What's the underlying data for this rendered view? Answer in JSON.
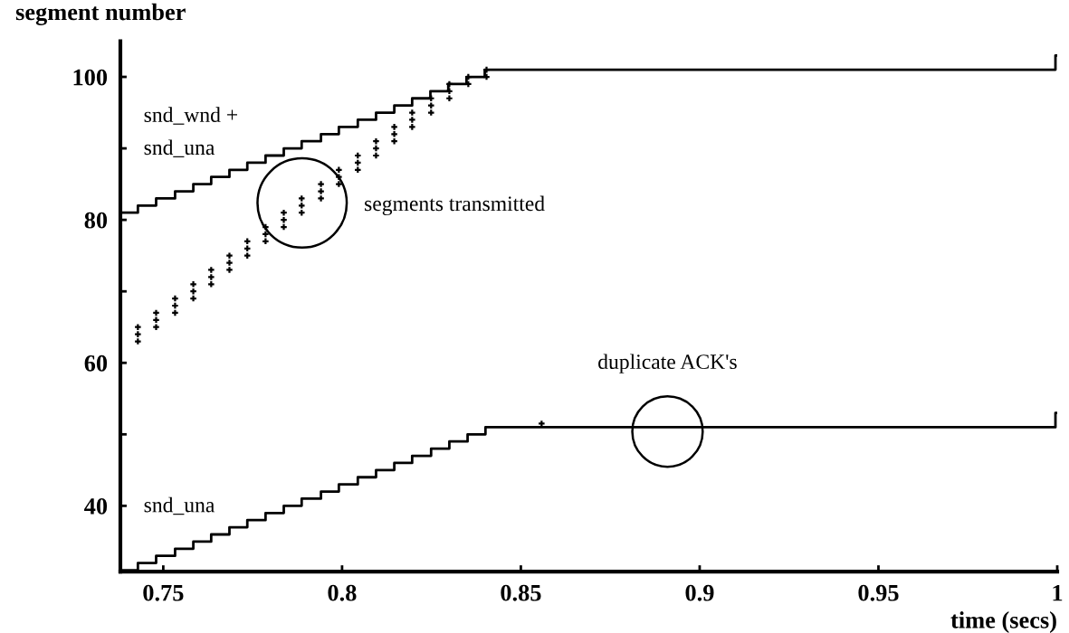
{
  "chart_data": {
    "type": "step",
    "xlabel": "time (secs)",
    "ylabel": "segment number",
    "xlim": [
      0.738,
      1.0
    ],
    "ylim": [
      30.8,
      105
    ],
    "xticks": [
      0.75,
      0.8,
      0.85,
      0.9,
      0.95,
      {
        "value": 1.0,
        "label": "1"
      }
    ],
    "yticks": [
      40,
      {
        "value": 50,
        "label": null
      },
      60,
      {
        "value": 70,
        "label": null
      },
      80,
      {
        "value": 90,
        "label": null
      },
      100
    ],
    "grid": false,
    "legend": false,
    "series": [
      {
        "name": "snd_wnd +\nsnd_una",
        "color": "#000000",
        "x": [
          0.738,
          0.7429,
          0.748,
          0.7533,
          0.7584,
          0.7634,
          0.7685,
          0.7735,
          0.7786,
          0.7837,
          0.7887,
          0.7941,
          0.7991,
          0.8044,
          0.8095,
          0.8146,
          0.8196,
          0.8247,
          0.8297,
          0.8348,
          0.8399,
          0.9995,
          1.0
        ],
        "values": [
          81,
          82,
          83,
          84,
          85,
          86,
          87,
          88,
          89,
          90,
          91,
          92,
          93,
          94,
          95,
          96,
          97,
          98,
          99,
          100,
          101,
          103,
          103
        ]
      },
      {
        "name": "snd_una",
        "color": "#000000",
        "x": [
          0.738,
          0.7429,
          0.748,
          0.7533,
          0.7584,
          0.7634,
          0.7685,
          0.7735,
          0.7786,
          0.7837,
          0.7887,
          0.7941,
          0.7991,
          0.8044,
          0.8095,
          0.8146,
          0.8196,
          0.8249,
          0.83,
          0.8351,
          0.8401,
          0.9995,
          1.0
        ],
        "values": [
          31,
          32,
          33,
          34,
          35,
          36,
          37,
          38,
          39,
          40,
          41,
          42,
          43,
          44,
          45,
          46,
          47,
          48,
          49,
          50,
          51,
          53,
          53
        ]
      },
      {
        "type": "scatter",
        "color": "#000000",
        "marker": "cross",
        "x": [
          0.7429,
          0.7429,
          0.7429,
          0.748,
          0.748,
          0.748,
          0.7533,
          0.7533,
          0.7533,
          0.7584,
          0.7584,
          0.7584,
          0.7634,
          0.7634,
          0.7634,
          0.7685,
          0.7685,
          0.7685,
          0.7735,
          0.7735,
          0.7735,
          0.7786,
          0.7786,
          0.7786,
          0.7837,
          0.7837,
          0.7837,
          0.7887,
          0.7887,
          0.7887,
          0.7941,
          0.7941,
          0.7941,
          0.7991,
          0.7991,
          0.7991,
          0.8044,
          0.8044,
          0.8044,
          0.8095,
          0.8095,
          0.8095,
          0.8146,
          0.8146,
          0.8146,
          0.8196,
          0.8196,
          0.8196,
          0.8249,
          0.8249,
          0.8249,
          0.83,
          0.83,
          0.83,
          0.8353,
          0.8353,
          0.8404,
          0.8404,
          0.8558
        ],
        "values": [
          63,
          64,
          65,
          65,
          66,
          67,
          67,
          68,
          69,
          69,
          70,
          71,
          71,
          72,
          73,
          73,
          74,
          75,
          75,
          76,
          77,
          77,
          78,
          79,
          79,
          80,
          81,
          81,
          82,
          83,
          83,
          84,
          85,
          85,
          86,
          87,
          87,
          88,
          89,
          89,
          90,
          91,
          91,
          92,
          93,
          93,
          94,
          95,
          95,
          96,
          97,
          97,
          98,
          99,
          99,
          100,
          100,
          101,
          51.5
        ]
      }
    ],
    "annotations": [
      "segments transmitted",
      "duplicate ACK's"
    ]
  }
}
